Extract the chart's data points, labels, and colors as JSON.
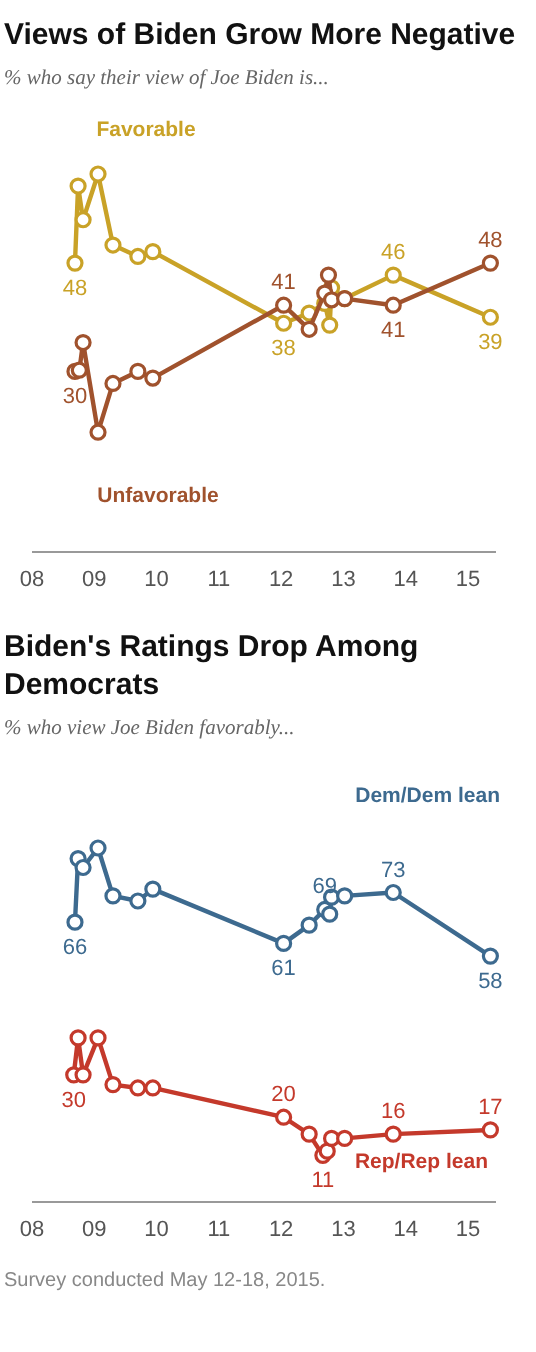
{
  "chart_data": [
    {
      "type": "line",
      "title": "Views of Biden Grow More Negative",
      "subtitle": "% who say their view of Joe Biden is...",
      "marker": "circle",
      "tick_labels": "x",
      "xlim": [
        2008,
        2015.45
      ],
      "xticks": [
        {
          "value": 2008,
          "label": "08"
        },
        {
          "value": 2009,
          "label": "09"
        },
        {
          "value": 2010,
          "label": "10"
        },
        {
          "value": 2011,
          "label": "11"
        },
        {
          "value": 2012,
          "label": "12"
        },
        {
          "value": 2013,
          "label": "13"
        },
        {
          "value": 2014,
          "label": "14"
        },
        {
          "value": 2015,
          "label": "15"
        }
      ],
      "series": [
        {
          "name": "Favorable",
          "color": "#c9a227",
          "x": [
            2008.69,
            2008.74,
            2008.82,
            2009.06,
            2009.3,
            2009.7,
            2009.94,
            2012.04,
            2012.45,
            2012.7,
            2012.78,
            2012.81,
            2013.02,
            2013.8,
            2015.36
          ],
          "values": [
            48,
            60.8,
            55.2,
            62.8,
            51,
            49.1,
            49.9,
            38,
            39.7,
            41.3,
            37.7,
            43.9,
            42.1,
            46,
            39
          ],
          "value_labels": [
            "48",
            null,
            null,
            null,
            null,
            null,
            null,
            "38",
            null,
            null,
            null,
            null,
            null,
            "46",
            "39"
          ]
        },
        {
          "name": "Unfavorable",
          "color": "#a0522d",
          "x": [
            2008.69,
            2008.76,
            2008.82,
            2009.06,
            2009.3,
            2009.7,
            2009.94,
            2012.04,
            2012.45,
            2012.7,
            2012.76,
            2012.81,
            2013.02,
            2013.8,
            2015.36
          ],
          "values": [
            30,
            30.2,
            34.8,
            19.9,
            28,
            30,
            28.9,
            41,
            37,
            43,
            46,
            41.9,
            42.1,
            41,
            48
          ],
          "value_labels": [
            "30",
            null,
            null,
            null,
            null,
            null,
            null,
            "41",
            null,
            null,
            null,
            null,
            null,
            "41",
            "48"
          ]
        }
      ]
    },
    {
      "type": "line",
      "title": "Biden's Ratings Drop Among Democrats",
      "subtitle": "% who view Joe Biden favorably...",
      "marker": "circle",
      "tick_labels": "x",
      "xlim": [
        2008,
        2015.45
      ],
      "xticks": [
        {
          "value": 2008,
          "label": "08"
        },
        {
          "value": 2009,
          "label": "09"
        },
        {
          "value": 2010,
          "label": "10"
        },
        {
          "value": 2011,
          "label": "11"
        },
        {
          "value": 2012,
          "label": "12"
        },
        {
          "value": 2013,
          "label": "13"
        },
        {
          "value": 2014,
          "label": "14"
        },
        {
          "value": 2015,
          "label": "15"
        }
      ],
      "annotations": [
        "Survey conducted May 12-18, 2015."
      ],
      "series": [
        {
          "name": "Dem/Dem lean",
          "color": "#3d6a8f",
          "x": [
            2008.69,
            2008.74,
            2008.82,
            2009.06,
            2009.3,
            2009.7,
            2009.94,
            2012.04,
            2012.45,
            2012.7,
            2012.78,
            2012.81,
            2013.02,
            2013.8,
            2015.36
          ],
          "values": [
            66,
            81,
            78.9,
            83.5,
            72.2,
            71,
            73.8,
            61,
            65.3,
            69,
            67.9,
            71.9,
            72.2,
            73,
            58
          ],
          "value_labels": [
            "66",
            null,
            null,
            null,
            null,
            null,
            null,
            "61",
            null,
            "69",
            null,
            null,
            null,
            "73",
            "58"
          ]
        },
        {
          "name": "Rep/Rep lean",
          "color": "#c4392b",
          "x": [
            2008.67,
            2008.74,
            2008.82,
            2009.06,
            2009.3,
            2009.7,
            2009.94,
            2012.04,
            2012.45,
            2012.67,
            2012.74,
            2012.81,
            2013.02,
            2013.8,
            2015.36
          ],
          "values": [
            30,
            38.7,
            30,
            38.7,
            27.7,
            26.9,
            26.9,
            20,
            16,
            11,
            12,
            15,
            15,
            16,
            17
          ],
          "value_labels": [
            "30",
            null,
            null,
            null,
            null,
            null,
            null,
            "20",
            null,
            "11",
            null,
            null,
            null,
            "16",
            "17"
          ]
        }
      ]
    }
  ]
}
